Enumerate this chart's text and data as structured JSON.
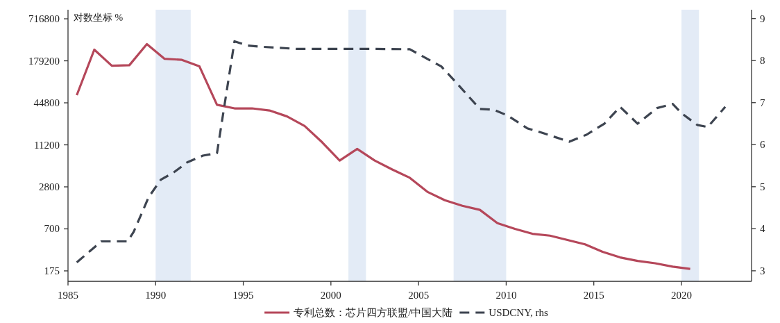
{
  "chart_data": {
    "type": "line",
    "ylabel": "对数坐标 %",
    "log": "y",
    "xlim": [
      1985,
      2024
    ],
    "xticks": [
      1985,
      1990,
      1995,
      2000,
      2005,
      2010,
      2015,
      2020
    ],
    "ylim": [
      124,
      967000
    ],
    "yticks": [
      175,
      700,
      2800,
      11200,
      44800,
      179200,
      716800
    ],
    "y2lim": [
      2.75,
      9.21
    ],
    "y2ticks": [
      3,
      4,
      5,
      6,
      7,
      8,
      9
    ],
    "grid": false,
    "legend": "bottom",
    "bands": [
      {
        "axis": "x",
        "from": 1990,
        "to": 1992,
        "color": "#e3ebf6"
      },
      {
        "axis": "x",
        "from": 2001,
        "to": 2002,
        "color": "#e3ebf6"
      },
      {
        "axis": "x",
        "from": 2007,
        "to": 2010,
        "color": "#e3ebf6"
      },
      {
        "axis": "x",
        "from": 2020,
        "to": 2021,
        "color": "#e3ebf6"
      }
    ],
    "series": [
      {
        "name": "专利总数：芯片四方联盟/中国大陆",
        "color": "#b5475a",
        "line_style": "solid",
        "x": [
          1985.5,
          1986.5,
          1987.5,
          1988.5,
          1989.5,
          1990.5,
          1991.5,
          1992.5,
          1993.5,
          1994.5,
          1995.5,
          1996.5,
          1997.5,
          1998.5,
          1999.5,
          2000.5,
          2001.5,
          2002.5,
          2003.5,
          2004.5,
          2005.5,
          2006.5,
          2007.5,
          2008.5,
          2009.5,
          2010.5,
          2011.5,
          2012.5,
          2013.5,
          2014.5,
          2015.5,
          2016.5,
          2017.5,
          2018.5,
          2019.5,
          2020.5
        ],
        "values": [
          57700,
          259000,
          152500,
          155000,
          311000,
          192000,
          185000,
          149000,
          42000,
          37300,
          37300,
          34800,
          28600,
          20900,
          12200,
          6680,
          9800,
          6680,
          4970,
          3780,
          2380,
          1800,
          1500,
          1310,
          845,
          700,
          595,
          560,
          485,
          420,
          328,
          273,
          243,
          225,
          201,
          187
        ]
      },
      {
        "name": "USDCNY, rhs",
        "color": "#3d4450",
        "line_style": "dashed",
        "axis": "y2",
        "x": [
          1985.5,
          1986.9,
          1988.4,
          1988.75,
          1989.6,
          1990.3,
          1991.0,
          1991.8,
          1992.7,
          1993.5,
          1994.5,
          1995.2,
          1996,
          1998,
          2000,
          2002,
          2004.5,
          2006.3,
          2007.1,
          2008.5,
          2009.3,
          2010.1,
          2011.2,
          2012.0,
          2013.6,
          2014.6,
          2015.6,
          2016.5,
          2017.5,
          2018.6,
          2019.5,
          2020.0,
          2020.9,
          2021.5,
          2022.5
        ],
        "values": [
          3.2,
          3.7,
          3.7,
          3.93,
          4.75,
          5.17,
          5.33,
          5.58,
          5.74,
          5.8,
          8.46,
          8.36,
          8.33,
          8.28,
          8.28,
          8.28,
          8.27,
          7.86,
          7.5,
          6.85,
          6.83,
          6.69,
          6.39,
          6.29,
          6.07,
          6.24,
          6.5,
          6.9,
          6.5,
          6.87,
          6.97,
          6.75,
          6.47,
          6.42,
          6.9
        ]
      }
    ]
  }
}
